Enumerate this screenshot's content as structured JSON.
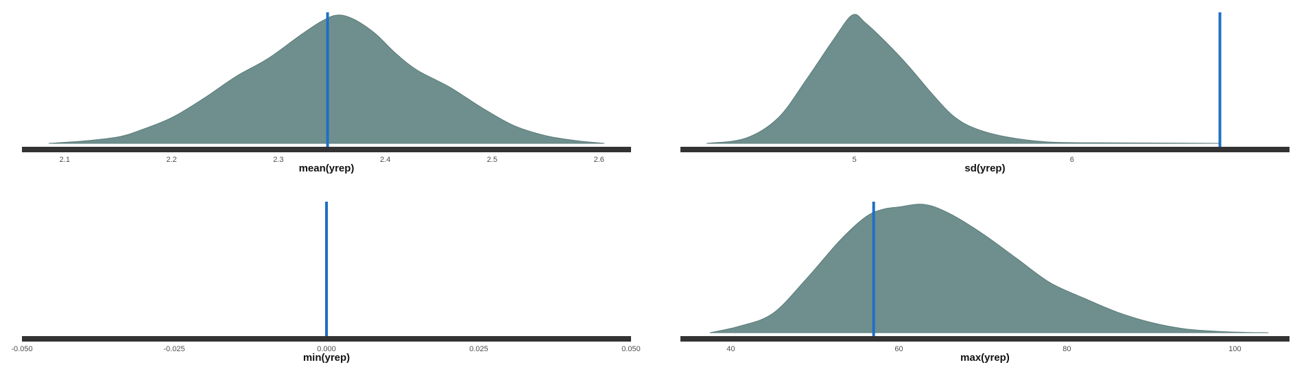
{
  "figure": {
    "title": "",
    "colors": {
      "density_fill": "#6e8f8d",
      "density_stroke": "#5b7b79",
      "observed_line": "#1f6fc5",
      "axis_line": "#333333"
    }
  },
  "chart_data": [
    {
      "type": "area",
      "xlabel": "mean(yrep)",
      "xlim": [
        2.06,
        2.63
      ],
      "ticks": [
        2.1,
        2.2,
        2.3,
        2.4,
        2.5,
        2.6
      ],
      "tick_labels": [
        "2.1",
        "2.2",
        "2.3",
        "2.4",
        "2.5",
        "2.6"
      ],
      "observed": 2.346,
      "density": {
        "x": [
          2.085,
          2.12,
          2.15,
          2.17,
          2.2,
          2.23,
          2.26,
          2.29,
          2.32,
          2.34,
          2.355,
          2.37,
          2.39,
          2.41,
          2.43,
          2.46,
          2.49,
          2.52,
          2.55,
          2.58,
          2.605
        ],
        "y": [
          0.0,
          0.02,
          0.05,
          0.1,
          0.2,
          0.35,
          0.52,
          0.66,
          0.84,
          0.95,
          1.0,
          0.97,
          0.86,
          0.7,
          0.57,
          0.44,
          0.28,
          0.14,
          0.06,
          0.02,
          0.0
        ]
      }
    },
    {
      "type": "area",
      "xlabel": "sd(yrep)",
      "xlim": [
        4.2,
        7.0
      ],
      "ticks": [
        5,
        6
      ],
      "tick_labels": [
        "5",
        "6"
      ],
      "observed": 6.68,
      "density": {
        "x": [
          4.32,
          4.5,
          4.65,
          4.78,
          4.9,
          4.99,
          5.05,
          5.15,
          5.25,
          5.35,
          5.45,
          5.55,
          5.7,
          5.9,
          6.2,
          6.5,
          6.68
        ],
        "y": [
          0.0,
          0.04,
          0.2,
          0.5,
          0.8,
          1.0,
          0.94,
          0.78,
          0.6,
          0.4,
          0.22,
          0.12,
          0.05,
          0.01,
          0.004,
          0.002,
          0.0
        ]
      }
    },
    {
      "type": "area",
      "xlabel": "min(yrep)",
      "xlim": [
        -0.05,
        0.05
      ],
      "ticks": [
        -0.05,
        -0.025,
        0.0,
        0.025,
        0.05
      ],
      "tick_labels": [
        "-0.050",
        "-0.025",
        "0.000",
        "0.025",
        "0.050"
      ],
      "observed": 0.0,
      "density": {
        "x": [],
        "y": []
      }
    },
    {
      "type": "area",
      "xlabel": "max(yrep)",
      "xlim": [
        34,
        106.5
      ],
      "ticks": [
        40,
        60,
        80,
        100
      ],
      "tick_labels": [
        "40",
        "60",
        "80",
        "100"
      ],
      "observed": 57,
      "density": {
        "x": [
          37.5,
          41,
          45,
          49,
          53,
          56,
          58,
          60,
          63,
          66,
          70,
          74,
          78,
          82,
          86,
          90,
          94,
          98,
          101,
          104
        ],
        "y": [
          0.0,
          0.05,
          0.15,
          0.42,
          0.72,
          0.9,
          0.96,
          0.98,
          1.0,
          0.93,
          0.77,
          0.58,
          0.39,
          0.27,
          0.16,
          0.08,
          0.03,
          0.01,
          0.003,
          0.0
        ]
      }
    }
  ]
}
